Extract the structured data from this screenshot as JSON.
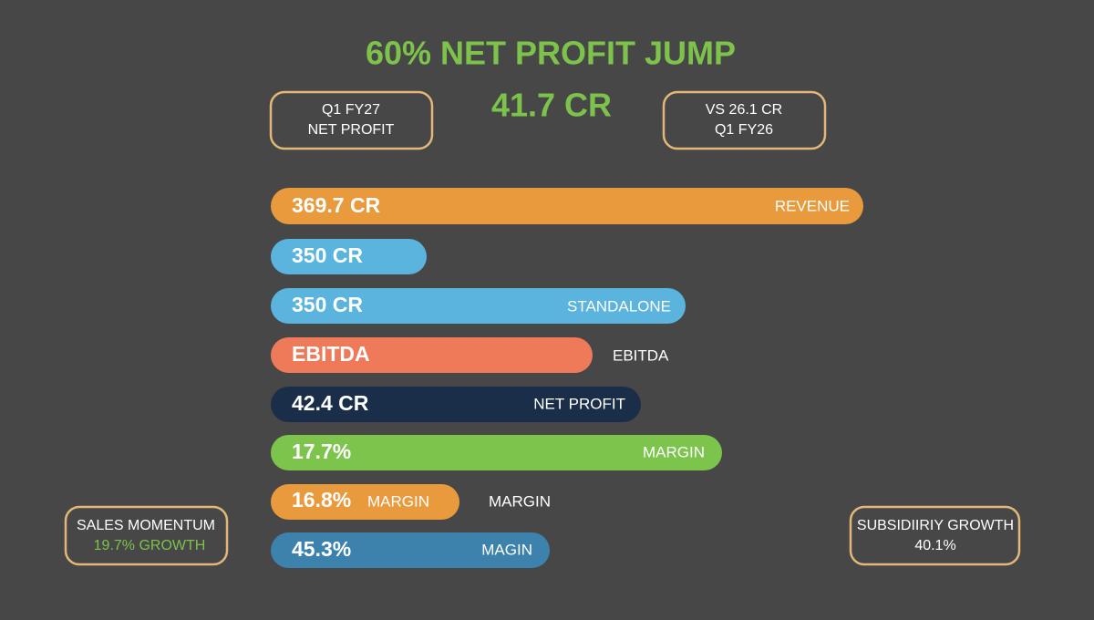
{
  "header": {
    "title": "60% NET PROFIT JUMP",
    "headline": "41.7 CR"
  },
  "top_left_box": {
    "line1": "Q1 FY27",
    "line2": "NET PROFIT"
  },
  "top_right_box": {
    "line1": "VS 26.1 CR",
    "line2": "Q1 FY26"
  },
  "bars": [
    {
      "value_label": "369.7 CR",
      "label": "REVENUE"
    },
    {
      "value_label": "350 CR"
    },
    {
      "value_label": "350 CR",
      "label": "STANDALONE"
    },
    {
      "value_label": "EBITDA",
      "outside_label": "EBITDA"
    },
    {
      "value_label": "42.4 CR",
      "label": "NET PROFIT"
    },
    {
      "value_label": "17.7%",
      "label": "MARGIN"
    },
    {
      "value_label": "16.8%",
      "label": "MARGIN",
      "outside_label": "MARGIN"
    },
    {
      "value_label": "45.3%",
      "label": "MAGIN"
    }
  ],
  "bottom_left_box": {
    "line1": "SALES MOMENTUM",
    "line2": "19.7% GROWTH"
  },
  "bottom_right_box": {
    "line1": "SUBSIDIIRIY GROWTH",
    "line2": "40.1%"
  }
}
